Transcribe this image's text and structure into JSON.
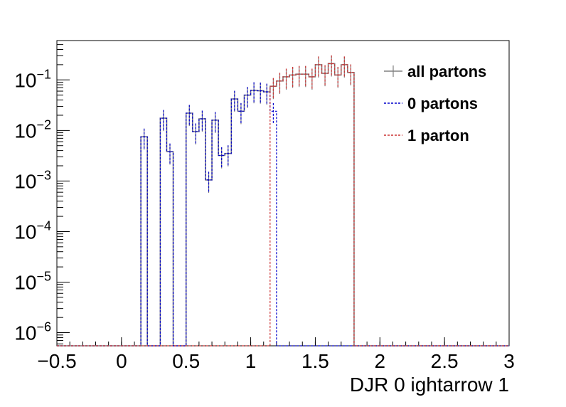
{
  "chart_data": {
    "type": "step",
    "title": "",
    "xlabel": "DJR 0 ightarrow 1",
    "ylabel": "",
    "xlim": [
      -0.5,
      3.0
    ],
    "ylim": [
      5.5e-07,
      0.6
    ],
    "yscale": "log",
    "grid": false,
    "legend_position": "top-right",
    "x_ticks": [
      {
        "value": -0.5,
        "label": "−0.5"
      },
      {
        "value": 0,
        "label": "0"
      },
      {
        "value": 0.5,
        "label": "0.5"
      },
      {
        "value": 1,
        "label": "1"
      },
      {
        "value": 1.5,
        "label": "1.5"
      },
      {
        "value": 2,
        "label": "2"
      },
      {
        "value": 2.5,
        "label": "2.5"
      },
      {
        "value": 3,
        "label": "3"
      }
    ],
    "y_ticks": [
      {
        "value": 1e-06,
        "base": "10",
        "exp": "−6"
      },
      {
        "value": 1e-05,
        "base": "10",
        "exp": "−5"
      },
      {
        "value": 0.0001,
        "base": "10",
        "exp": "−4"
      },
      {
        "value": 0.001,
        "base": "10",
        "exp": "−3"
      },
      {
        "value": 0.01,
        "base": "10",
        "exp": "−2"
      },
      {
        "value": 0.1,
        "base": "10",
        "exp": "−1"
      }
    ],
    "bin_edges": [
      -0.5,
      -0.45,
      -0.4,
      -0.35,
      -0.3,
      -0.25,
      -0.2,
      -0.15,
      -0.1,
      -0.05,
      0.0,
      0.05,
      0.1,
      0.15,
      0.2,
      0.25,
      0.3,
      0.35,
      0.4,
      0.45,
      0.5,
      0.55,
      0.6,
      0.65,
      0.7,
      0.75,
      0.8,
      0.85,
      0.9,
      0.95,
      1.0,
      1.05,
      1.1,
      1.15,
      1.2,
      1.25,
      1.3,
      1.35,
      1.4,
      1.45,
      1.5,
      1.55,
      1.6,
      1.65,
      1.7,
      1.75,
      1.8,
      1.85,
      1.9,
      1.95,
      2.0,
      2.05,
      2.1,
      2.15,
      2.2,
      2.25,
      2.3,
      2.35,
      2.4,
      2.45,
      2.5,
      2.55,
      2.6,
      2.65,
      2.7,
      2.75,
      2.8,
      2.85,
      2.9,
      2.95,
      3.0
    ],
    "series": [
      {
        "name": "all partons",
        "color": "#808080",
        "style": "solid",
        "values": [
          0,
          0,
          0,
          0,
          0,
          0,
          0,
          0,
          0,
          0,
          0,
          0,
          0,
          0.0075,
          0,
          0,
          0.0175,
          0.0038,
          0,
          0,
          0.022,
          0.0095,
          0.017,
          0.00105,
          0.016,
          0.0032,
          0.0035,
          0.042,
          0.024,
          0.05,
          0.062,
          0.061,
          0.058,
          0.075,
          0.095,
          0.115,
          0.125,
          0.13,
          0.13,
          0.115,
          0.2,
          0.135,
          0.21,
          0.125,
          0.2,
          0.14,
          0,
          0,
          0,
          0,
          0,
          0,
          0,
          0,
          0,
          0,
          0,
          0,
          0,
          0,
          0,
          0,
          0,
          0,
          0,
          0,
          0,
          0,
          0,
          0
        ]
      },
      {
        "name": "0 partons",
        "color": "#0000cc",
        "style": "dashed",
        "values": [
          0,
          0,
          0,
          0,
          0,
          0,
          0,
          0,
          0,
          0,
          0,
          0,
          0,
          0.0075,
          0,
          0,
          0.0175,
          0.0038,
          0,
          0,
          0.022,
          0.0095,
          0.017,
          0.00105,
          0.016,
          0.0032,
          0.0035,
          0.042,
          0.024,
          0.05,
          0.062,
          0.061,
          0.058,
          0.024,
          0,
          0,
          0,
          0,
          0,
          0,
          0,
          0,
          0,
          0,
          0,
          0,
          0,
          0,
          0,
          0,
          0,
          0,
          0,
          0,
          0,
          0,
          0,
          0,
          0,
          0,
          0,
          0,
          0,
          0,
          0,
          0,
          0,
          0,
          0,
          0
        ]
      },
      {
        "name": "1 parton",
        "color": "#cc3333",
        "style": "dashed",
        "values": [
          0,
          0,
          0,
          0,
          0,
          0,
          0,
          0,
          0,
          0,
          0,
          0,
          0,
          0,
          0,
          0,
          0,
          0,
          0,
          0,
          0,
          0,
          0,
          0,
          0,
          0,
          0,
          0,
          0,
          0,
          0,
          0,
          0,
          0.075,
          0.095,
          0.115,
          0.125,
          0.13,
          0.13,
          0.115,
          0.2,
          0.135,
          0.21,
          0.125,
          0.2,
          0.14,
          0,
          0,
          0,
          0,
          0,
          0,
          0,
          0,
          0,
          0,
          0,
          0,
          0,
          0,
          0,
          0,
          0,
          0,
          0,
          0,
          0,
          0,
          0,
          0
        ]
      }
    ]
  }
}
